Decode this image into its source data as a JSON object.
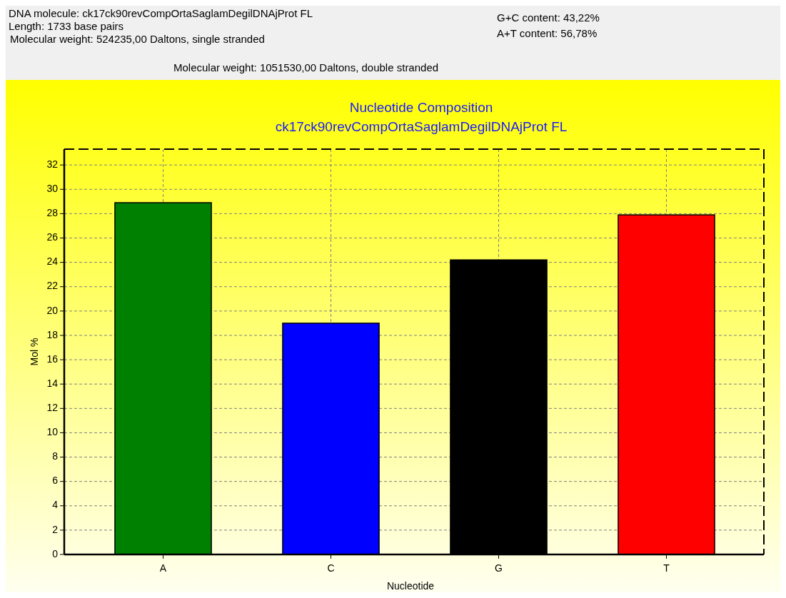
{
  "chart_data": {
    "type": "bar",
    "title": "Nucleotide Composition",
    "subtitle": "ck17ck90revCompOrtaSaglamDegilDNAjProt FL",
    "xlabel": "Nucleotide",
    "ylabel": "Mol %",
    "categories": [
      "A",
      "C",
      "G",
      "T"
    ],
    "values": [
      28.9,
      19.0,
      24.2,
      27.9
    ],
    "colors": [
      "#008000",
      "#0000ff",
      "#000000",
      "#ff0000"
    ],
    "ylim": [
      0,
      33.3
    ],
    "yticks": [
      0,
      2,
      4,
      6,
      8,
      10,
      12,
      14,
      16,
      18,
      20,
      22,
      24,
      26,
      28,
      30,
      32
    ],
    "grid": true,
    "annotations": [
      "DNA molecule: ck17ck90revCompOrtaSaglamDegilDNAjProt FL",
      "Length: 1733 base pairs",
      "Molecular weight: 524235,00 Daltons, single stranded",
      "Molecular weight: 1051530,00 Daltons, double stranded",
      "G+C content: 43,22%",
      "A+T content: 56,78%"
    ]
  }
}
